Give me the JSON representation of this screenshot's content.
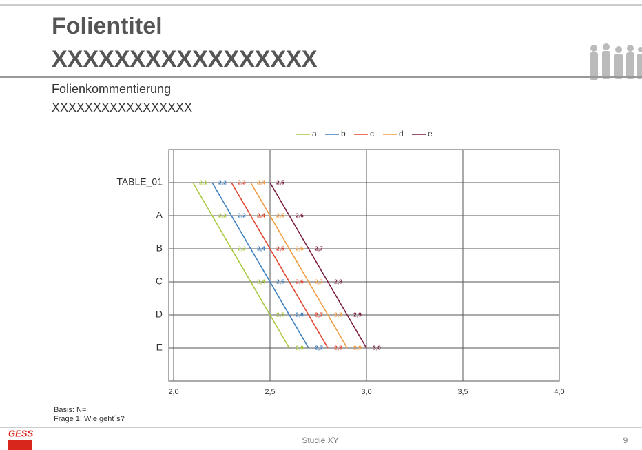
{
  "slide": {
    "title_lines": [
      "Folientitel",
      "XXXXXXXXXXXXXXXXX"
    ],
    "comment_lines": [
      "Folienkommentierung",
      "XXXXXXXXXXXXXXXXX"
    ],
    "notes": [
      "Basis: N=",
      "Frage 1: Wie geht´s?"
    ],
    "logo": "GESS",
    "footer": "Studie XY",
    "page": "9"
  },
  "chart_data": {
    "type": "line",
    "orientation": "horizontal",
    "categories": [
      "TABLE_01",
      "A",
      "B",
      "C",
      "D",
      "E"
    ],
    "series": [
      {
        "name": "a",
        "color": "#a5c83a",
        "values": [
          2.1,
          2.2,
          2.3,
          2.4,
          2.5,
          2.6
        ],
        "value_labels": [
          "2,1",
          "2,2",
          "2,3",
          "2,4",
          "2,5",
          "2,6"
        ]
      },
      {
        "name": "b",
        "color": "#3b7fc0",
        "values": [
          2.2,
          2.3,
          2.4,
          2.5,
          2.6,
          2.7
        ],
        "value_labels": [
          "2,2",
          "2,3",
          "2,4",
          "2,5",
          "2,6",
          "2,7"
        ]
      },
      {
        "name": "c",
        "color": "#e1452e",
        "values": [
          2.3,
          2.4,
          2.5,
          2.6,
          2.7,
          2.8
        ],
        "value_labels": [
          "2,3",
          "2,4",
          "2,5",
          "2,6",
          "2,7",
          "2,8"
        ]
      },
      {
        "name": "d",
        "color": "#f29a3e",
        "values": [
          2.4,
          2.5,
          2.6,
          2.7,
          2.8,
          2.9
        ],
        "value_labels": [
          "2,4",
          "2,5",
          "2,6",
          "2,7",
          "2,8",
          "2,9"
        ]
      },
      {
        "name": "e",
        "color": "#7b1c3e",
        "values": [
          2.5,
          2.6,
          2.7,
          2.8,
          2.9,
          3.0
        ],
        "value_labels": [
          "2,5",
          "2,6",
          "2,7",
          "2,8",
          "2,9",
          "3,0"
        ]
      }
    ],
    "xlim": [
      2.0,
      4.0
    ],
    "xticks": [
      {
        "value": 2.0,
        "label": "2,0"
      },
      {
        "value": 2.5,
        "label": "2,5"
      },
      {
        "value": 3.0,
        "label": "3,0"
      },
      {
        "value": 3.5,
        "label": "3,5"
      },
      {
        "value": 4.0,
        "label": "4,0"
      }
    ],
    "grid": true,
    "legend": "top"
  }
}
